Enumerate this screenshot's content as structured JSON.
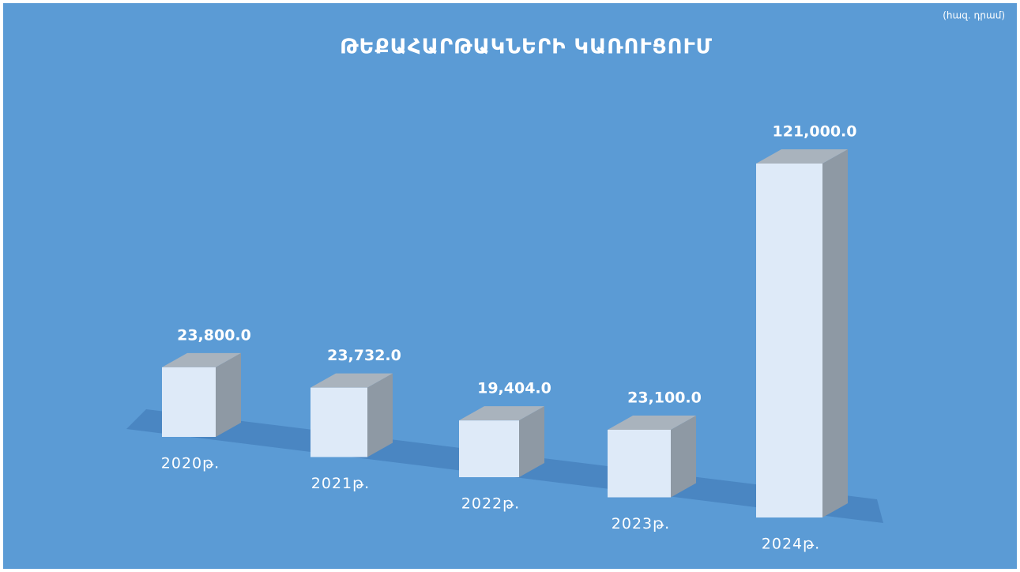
{
  "chart_data": {
    "type": "bar3d",
    "title": "ԹԵՔԱՀԱՐԹԱԿՆԵՐԻ ԿԱՌՈՒՑՈՒՄ",
    "subtitle": "(հազ. դրամ)",
    "categories": [
      "2020թ.",
      "2021թ.",
      "2022թ.",
      "2023թ.",
      "2024թ."
    ],
    "values": [
      23800,
      23732,
      19404,
      23100,
      121000
    ],
    "value_labels": [
      "23,800.0",
      "23,732.0",
      "19,404.0",
      "23,100.0",
      "121,000.0"
    ],
    "color": "#deeaf8"
  }
}
